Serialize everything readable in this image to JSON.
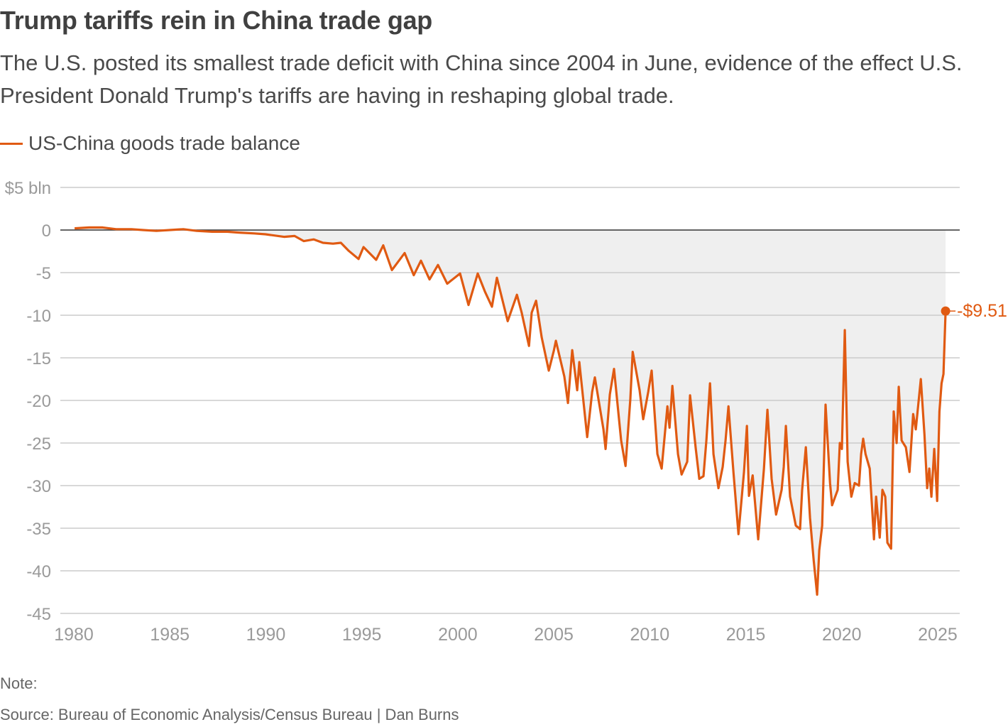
{
  "title": "Trump tariffs rein in China trade gap",
  "subtitle": "The U.S. posted its smallest trade deficit with China since 2004 in June, evidence of the effect U.S. President Donald Trump's tariffs are having in reshaping global trade.",
  "note": "Note:",
  "source": "Source: Bureau of Economic Analysis/Census Bureau | Dan Burns",
  "chart_data": {
    "type": "area",
    "title": "Trump tariffs rein in China trade gap",
    "xlabel": "",
    "ylabel": "",
    "ylim": [
      -45,
      5
    ],
    "xlim": [
      1980,
      2025.5
    ],
    "grid": true,
    "legend_position": "top-left",
    "y_ticks": [
      5,
      0,
      -5,
      -10,
      -15,
      -20,
      -25,
      -30,
      -35,
      -40,
      -45
    ],
    "y_tick_labels": [
      "$5 bln",
      "0",
      "-5",
      "-10",
      "-15",
      "-20",
      "-25",
      "-30",
      "-35",
      "-40",
      "-45"
    ],
    "x_ticks": [
      1980,
      1985,
      1990,
      1995,
      2000,
      2005,
      2010,
      2015,
      2020,
      2025
    ],
    "x_tick_labels": [
      "1980",
      "1985",
      "1990",
      "1995",
      "2000",
      "2005",
      "2010",
      "2015",
      "2020",
      "2025"
    ],
    "end_label": "-$9.51",
    "colors": {
      "line": "#e05a12",
      "fill": "#efefef",
      "grid": "#cccccc",
      "zero": "#333333"
    },
    "series": [
      {
        "name": "US-China goods trade balance",
        "points": [
          [
            1980.04,
            0.2
          ],
          [
            1980.8,
            0.3
          ],
          [
            1981.5,
            0.3
          ],
          [
            1982.2,
            0.1
          ],
          [
            1983.0,
            0.1
          ],
          [
            1983.6,
            0.0
          ],
          [
            1984.3,
            -0.1
          ],
          [
            1985.0,
            0.0
          ],
          [
            1985.7,
            0.1
          ],
          [
            1986.4,
            -0.1
          ],
          [
            1987.2,
            -0.2
          ],
          [
            1987.99,
            -0.2
          ],
          [
            1988.6,
            -0.3
          ],
          [
            1989.4,
            -0.4
          ],
          [
            1989.99,
            -0.5
          ],
          [
            1990.95,
            -0.8
          ],
          [
            1991.5,
            -0.7
          ],
          [
            1991.98,
            -1.3
          ],
          [
            1992.5,
            -1.1
          ],
          [
            1992.98,
            -1.5
          ],
          [
            1993.5,
            -1.6
          ],
          [
            1993.91,
            -1.5
          ],
          [
            1994.3,
            -2.4
          ],
          [
            1994.83,
            -3.4
          ],
          [
            1995.09,
            -2.0
          ],
          [
            1995.75,
            -3.5
          ],
          [
            1996.12,
            -1.8
          ],
          [
            1996.57,
            -4.7
          ],
          [
            1997.23,
            -2.7
          ],
          [
            1997.71,
            -5.3
          ],
          [
            1998.08,
            -3.6
          ],
          [
            1998.53,
            -5.8
          ],
          [
            1998.97,
            -4.1
          ],
          [
            1999.45,
            -6.3
          ],
          [
            2000.12,
            -5.1
          ],
          [
            2000.56,
            -8.8
          ],
          [
            2001.04,
            -5.1
          ],
          [
            2001.41,
            -7.2
          ],
          [
            2001.78,
            -9.0
          ],
          [
            2002.04,
            -5.6
          ],
          [
            2002.6,
            -10.7
          ],
          [
            2003.08,
            -7.6
          ],
          [
            2003.33,
            -9.7
          ],
          [
            2003.71,
            -13.6
          ],
          [
            2003.85,
            -9.7
          ],
          [
            2004.08,
            -8.3
          ],
          [
            2004.37,
            -12.6
          ],
          [
            2004.74,
            -16.5
          ],
          [
            2005.0,
            -14.2
          ],
          [
            2005.11,
            -13.0
          ],
          [
            2005.55,
            -17.2
          ],
          [
            2005.74,
            -20.3
          ],
          [
            2005.96,
            -14.1
          ],
          [
            2006.22,
            -18.8
          ],
          [
            2006.33,
            -15.5
          ],
          [
            2006.74,
            -24.3
          ],
          [
            2007.0,
            -19.0
          ],
          [
            2007.14,
            -17.3
          ],
          [
            2007.59,
            -23.4
          ],
          [
            2007.7,
            -25.7
          ],
          [
            2007.92,
            -19.3
          ],
          [
            2008.14,
            -16.3
          ],
          [
            2008.51,
            -24.7
          ],
          [
            2008.74,
            -27.7
          ],
          [
            2008.99,
            -19.8
          ],
          [
            2009.11,
            -14.3
          ],
          [
            2009.47,
            -18.8
          ],
          [
            2009.66,
            -22.2
          ],
          [
            2009.92,
            -19.0
          ],
          [
            2010.1,
            -16.5
          ],
          [
            2010.4,
            -26.3
          ],
          [
            2010.62,
            -28.0
          ],
          [
            2010.92,
            -20.7
          ],
          [
            2011.03,
            -23.2
          ],
          [
            2011.18,
            -18.3
          ],
          [
            2011.47,
            -26.3
          ],
          [
            2011.66,
            -28.7
          ],
          [
            2011.95,
            -27.2
          ],
          [
            2012.1,
            -19.4
          ],
          [
            2012.4,
            -25.7
          ],
          [
            2012.58,
            -29.2
          ],
          [
            2012.8,
            -28.9
          ],
          [
            2012.95,
            -24.7
          ],
          [
            2013.14,
            -18.0
          ],
          [
            2013.32,
            -26.3
          ],
          [
            2013.58,
            -30.3
          ],
          [
            2013.8,
            -27.8
          ],
          [
            2013.95,
            -24.7
          ],
          [
            2014.1,
            -20.7
          ],
          [
            2014.36,
            -28.4
          ],
          [
            2014.62,
            -35.7
          ],
          [
            2014.91,
            -28.4
          ],
          [
            2015.06,
            -23.0
          ],
          [
            2015.17,
            -31.2
          ],
          [
            2015.36,
            -28.8
          ],
          [
            2015.65,
            -36.3
          ],
          [
            2015.95,
            -28.0
          ],
          [
            2016.13,
            -21.1
          ],
          [
            2016.35,
            -29.2
          ],
          [
            2016.58,
            -33.4
          ],
          [
            2016.87,
            -30.5
          ],
          [
            2016.98,
            -27.8
          ],
          [
            2017.09,
            -23.0
          ],
          [
            2017.31,
            -31.3
          ],
          [
            2017.61,
            -34.7
          ],
          [
            2017.83,
            -35.1
          ],
          [
            2017.94,
            -30.5
          ],
          [
            2018.13,
            -25.5
          ],
          [
            2018.35,
            -33.8
          ],
          [
            2018.54,
            -38.8
          ],
          [
            2018.72,
            -42.8
          ],
          [
            2018.83,
            -37.6
          ],
          [
            2018.98,
            -34.7
          ],
          [
            2019.16,
            -20.5
          ],
          [
            2019.39,
            -29.7
          ],
          [
            2019.5,
            -32.3
          ],
          [
            2019.79,
            -30.5
          ],
          [
            2019.9,
            -25.0
          ],
          [
            2020.01,
            -25.7
          ],
          [
            2020.16,
            -11.75
          ],
          [
            2020.31,
            -27.2
          ],
          [
            2020.5,
            -31.3
          ],
          [
            2020.68,
            -29.7
          ],
          [
            2020.9,
            -30.0
          ],
          [
            2021.01,
            -26.3
          ],
          [
            2021.12,
            -24.5
          ],
          [
            2021.24,
            -26.3
          ],
          [
            2021.46,
            -28.0
          ],
          [
            2021.68,
            -36.3
          ],
          [
            2021.79,
            -31.3
          ],
          [
            2021.98,
            -36.1
          ],
          [
            2022.12,
            -30.5
          ],
          [
            2022.27,
            -31.3
          ],
          [
            2022.38,
            -36.7
          ],
          [
            2022.57,
            -37.4
          ],
          [
            2022.71,
            -21.3
          ],
          [
            2022.86,
            -25.0
          ],
          [
            2022.97,
            -18.4
          ],
          [
            2023.12,
            -24.7
          ],
          [
            2023.34,
            -25.5
          ],
          [
            2023.53,
            -28.4
          ],
          [
            2023.72,
            -21.6
          ],
          [
            2023.86,
            -23.4
          ],
          [
            2024.12,
            -17.5
          ],
          [
            2024.31,
            -24.0
          ],
          [
            2024.45,
            -30.3
          ],
          [
            2024.56,
            -28.0
          ],
          [
            2024.67,
            -31.3
          ],
          [
            2024.82,
            -25.7
          ],
          [
            2024.97,
            -31.8
          ],
          [
            2025.09,
            -21.3
          ],
          [
            2025.2,
            -18.0
          ],
          [
            2025.3,
            -16.9
          ],
          [
            2025.41,
            -9.51
          ]
        ]
      }
    ]
  }
}
